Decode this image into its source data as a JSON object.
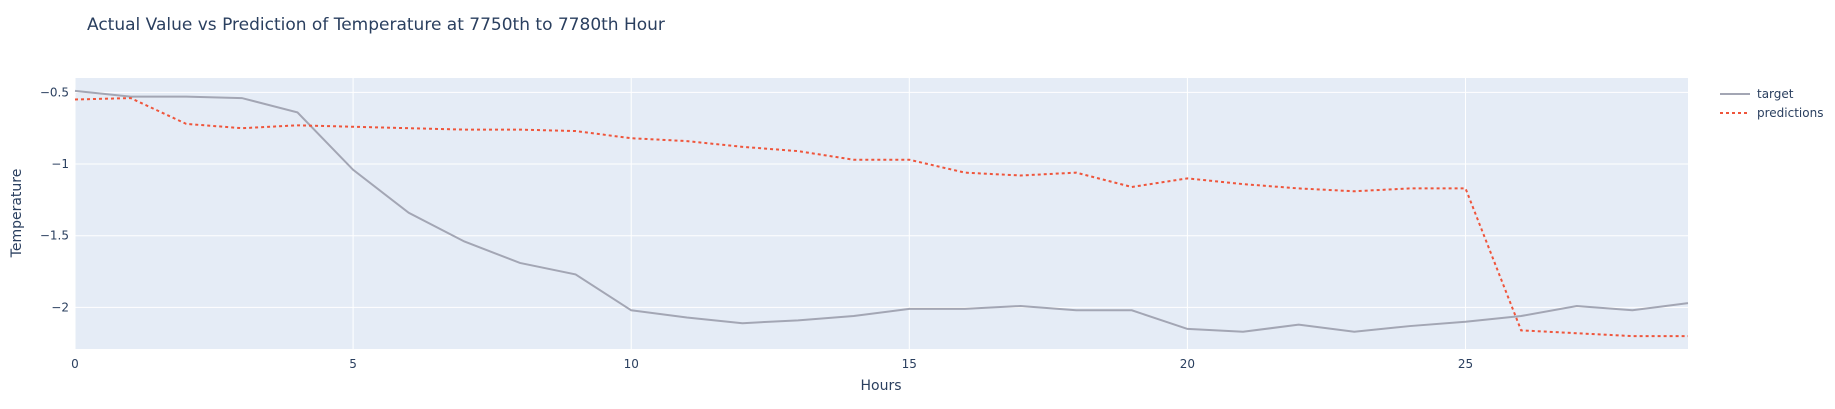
{
  "chart_data": {
    "type": "line",
    "title": "Actual Value vs Prediction of Temperature at 7750th to 7780th Hour",
    "xlabel": "Hours",
    "ylabel": "Temperature",
    "xlim": [
      0,
      29
    ],
    "ylim": [
      -2.29,
      -0.4
    ],
    "xticks": [
      0,
      5,
      10,
      15,
      20,
      25
    ],
    "yticks": [
      -0.5,
      -1,
      -1.5,
      -2
    ],
    "xtick_labels": [
      "0",
      "5",
      "10",
      "15",
      "20",
      "25"
    ],
    "ytick_labels": [
      "−0.5",
      "−1",
      "−1.5",
      "−2"
    ],
    "grid": true,
    "legend_position": "top-right",
    "x": [
      0,
      1,
      2,
      3,
      4,
      5,
      6,
      7,
      8,
      9,
      10,
      11,
      12,
      13,
      14,
      15,
      16,
      17,
      18,
      19,
      20,
      21,
      22,
      23,
      24,
      25,
      26,
      27,
      28,
      29
    ],
    "series": [
      {
        "name": "target",
        "color": "#a3a6b4",
        "dash": "solid",
        "values": [
          -0.49,
          -0.53,
          -0.53,
          -0.54,
          -0.64,
          -1.04,
          -1.34,
          -1.54,
          -1.69,
          -1.77,
          -2.02,
          -2.07,
          -2.11,
          -2.09,
          -2.06,
          -2.01,
          -2.01,
          -1.99,
          -2.02,
          -2.02,
          -2.15,
          -2.17,
          -2.12,
          -2.17,
          -2.13,
          -2.1,
          -2.06,
          -1.99,
          -2.02,
          -1.97
        ]
      },
      {
        "name": "predictions",
        "color": "#ef553b",
        "dash": "dotted",
        "values": [
          -0.55,
          -0.54,
          -0.72,
          -0.75,
          -0.73,
          -0.74,
          -0.75,
          -0.76,
          -0.76,
          -0.77,
          -0.82,
          -0.84,
          -0.88,
          -0.91,
          -0.97,
          -0.97,
          -1.06,
          -1.08,
          -1.06,
          -1.16,
          -1.1,
          -1.14,
          -1.17,
          -1.19,
          -1.17,
          -1.17,
          -2.16,
          -2.18,
          -2.2,
          -2.2
        ]
      }
    ]
  }
}
